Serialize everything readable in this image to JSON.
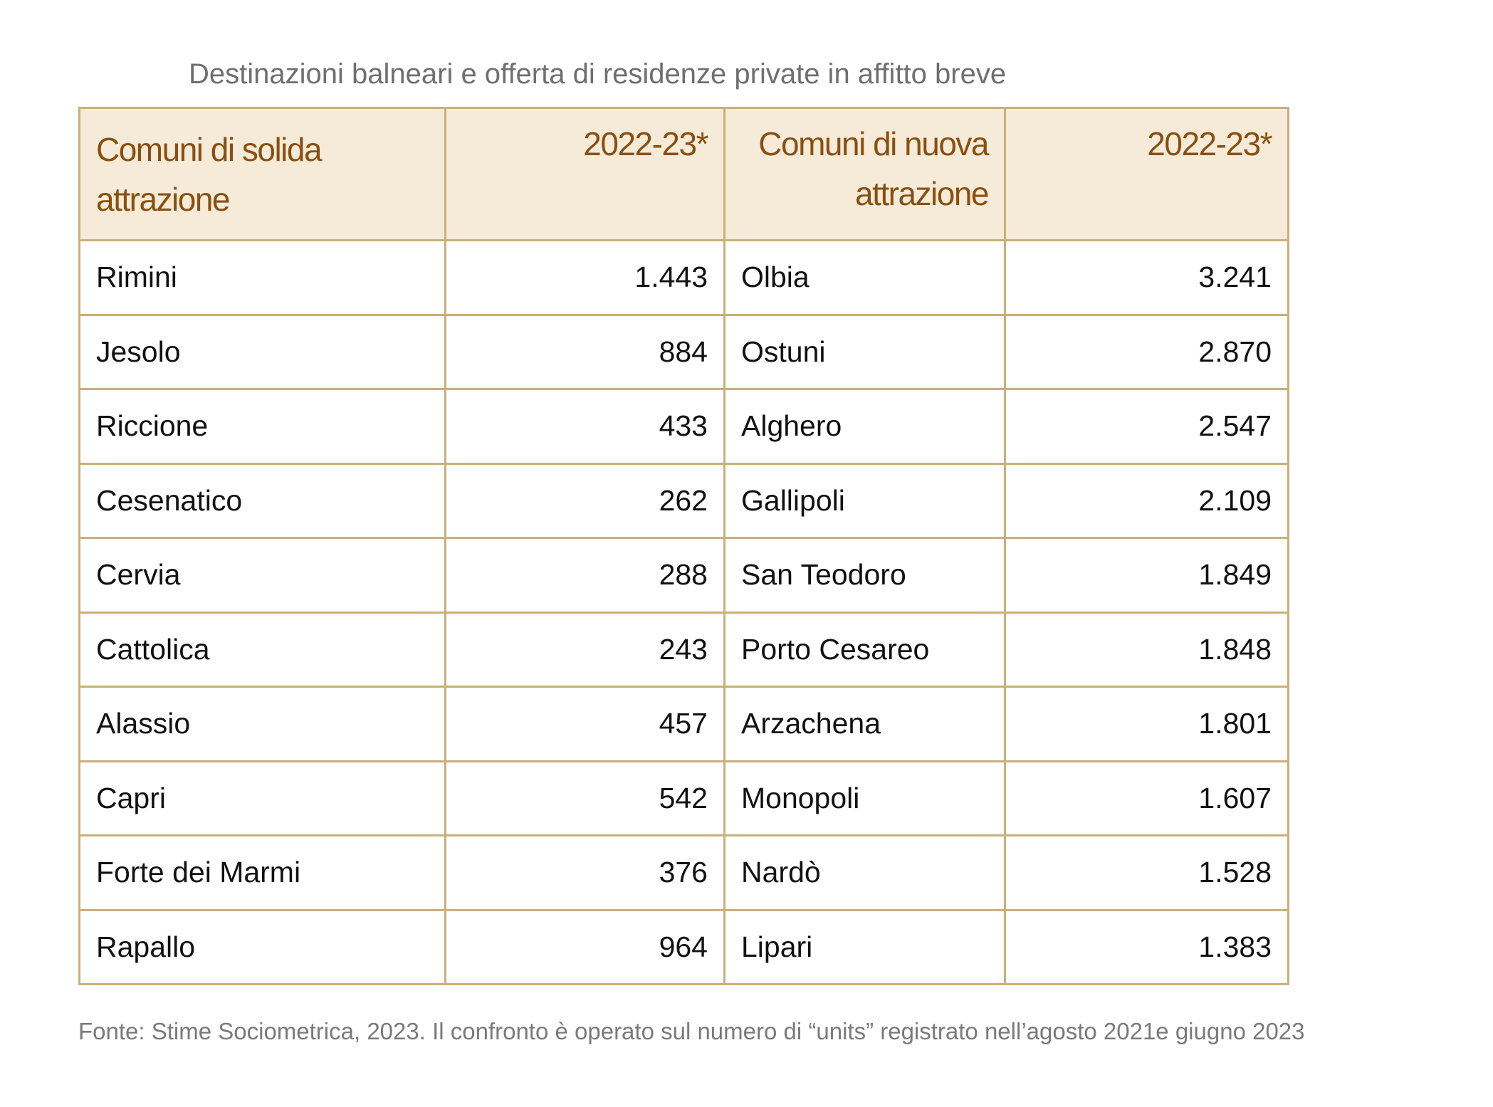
{
  "title": "Destinazioni balneari e offerta di residenze private in affitto breve",
  "table": {
    "headers": [
      "Comuni di solida attrazione",
      "2022-23*",
      "Comuni di nuova attrazione",
      "2022-23*"
    ],
    "rows": [
      [
        "Rimini",
        "1.443",
        "Olbia",
        "3.241"
      ],
      [
        "Jesolo",
        "884",
        "Ostuni",
        "2.870"
      ],
      [
        "Riccione",
        "433",
        "Alghero",
        "2.547"
      ],
      [
        "Cesenatico",
        "262",
        "Gallipoli",
        "2.109"
      ],
      [
        "Cervia",
        "288",
        "San Teodoro",
        "1.849"
      ],
      [
        "Cattolica",
        "243",
        "Porto Cesareo",
        "1.848"
      ],
      [
        "Alassio",
        "457",
        "Arzachena",
        "1.801"
      ],
      [
        "Capri",
        "542",
        "Monopoli",
        "1.607"
      ],
      [
        "Forte dei Marmi",
        "376",
        "Nardò",
        "1.528"
      ],
      [
        "Rapallo",
        "964",
        "Lipari",
        "1.383"
      ]
    ]
  },
  "source": "Fonte: Stime Sociometrica, 2023. Il confronto è operato sul numero di “units” registrato nell’agosto 2021e giugno 2023",
  "colors": {
    "header_bg": "#f6ebd8",
    "header_text": "#8a4f10",
    "border": "#c9b07a"
  }
}
